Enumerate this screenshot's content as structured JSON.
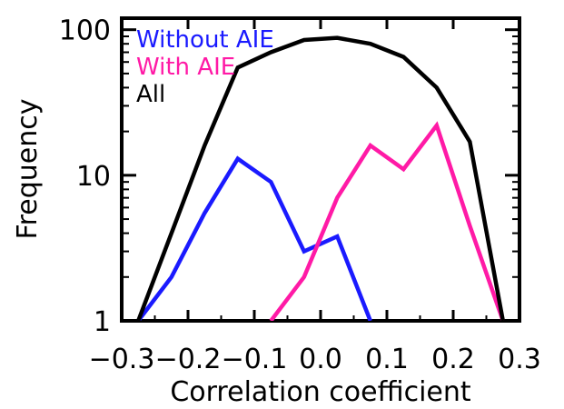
{
  "chart_data": {
    "type": "line",
    "xlabel": "Correlation coefficient",
    "ylabel": "Frequency",
    "xlim": [
      -0.3,
      0.3
    ],
    "ylim": [
      1,
      120
    ],
    "yscale": "log",
    "xticks": [
      -0.3,
      -0.2,
      -0.1,
      0.0,
      0.1,
      0.2,
      0.3
    ],
    "xtick_labels": [
      "−0.3",
      "−0.2",
      "−0.1",
      "0.0",
      "0.1",
      "0.2",
      "0.3"
    ],
    "yticks": [
      1,
      10,
      100
    ],
    "ytick_labels": [
      "1",
      "10",
      "100"
    ],
    "grid": false,
    "legend_position": "top-left",
    "series": [
      {
        "name": "Without AIE",
        "color": "#1a1aff",
        "x": [
          -0.275,
          -0.225,
          -0.175,
          -0.125,
          -0.075,
          -0.025,
          0.025,
          0.075
        ],
        "y": [
          1,
          2,
          5.5,
          13,
          9,
          3,
          3.8,
          1
        ]
      },
      {
        "name": "With AIE",
        "color": "#ff1aa6",
        "x": [
          -0.075,
          -0.025,
          0.025,
          0.075,
          0.125,
          0.175,
          0.225,
          0.275
        ],
        "y": [
          1,
          2,
          7,
          16,
          11,
          22,
          4.5,
          1
        ]
      },
      {
        "name": "All",
        "color": "#000000",
        "x": [
          -0.275,
          -0.225,
          -0.175,
          -0.125,
          -0.075,
          -0.025,
          0.025,
          0.075,
          0.125,
          0.175,
          0.225,
          0.275
        ],
        "y": [
          1,
          4,
          16,
          55,
          70,
          85,
          88,
          80,
          65,
          40,
          17,
          1
        ]
      }
    ]
  }
}
